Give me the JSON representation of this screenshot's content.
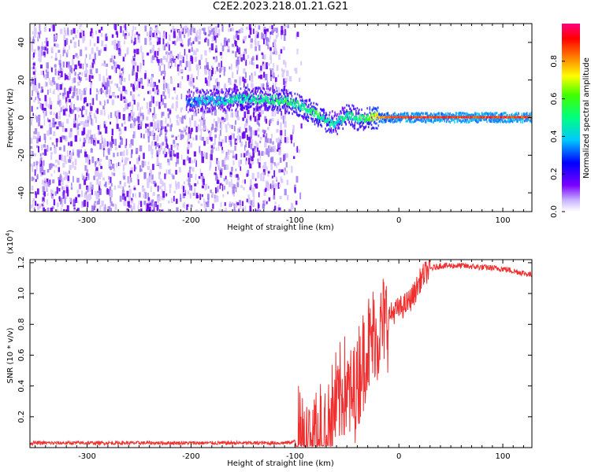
{
  "title": "C2E2.2023.218.01.21.G21",
  "colors": {
    "noise": "#a98ff0",
    "signal_low": "#6a00ff",
    "signal_mid": "#00e5ff",
    "signal_high": "#ff2a2a",
    "snr_line": "#f03030"
  },
  "chart_data": [
    {
      "type": "heatmap",
      "xlabel": "Height of straight line (km)",
      "ylabel": "Frequency (Hz)",
      "xlim": [
        -355,
        128
      ],
      "ylim": [
        -50,
        50
      ],
      "x_ticks": [
        "-300",
        "-200",
        "-100",
        "0",
        "100"
      ],
      "x_tick_values": [
        -300,
        -200,
        -100,
        0,
        100
      ],
      "y_ticks": [
        "-40",
        "-20",
        "0",
        "20",
        "40"
      ],
      "y_tick_values": [
        -40,
        -20,
        0,
        20,
        40
      ],
      "colorbar": {
        "label": "Normalized spectral amplitude",
        "range": [
          0,
          1
        ],
        "ticks": [
          "0.0",
          "0.2",
          "0.4",
          "0.6",
          "0.8"
        ],
        "tick_values": [
          0.0,
          0.2,
          0.4,
          0.6,
          0.8
        ]
      },
      "noise_region": {
        "x_range": [
          -355,
          -100
        ],
        "y_range": [
          -50,
          50
        ]
      },
      "signal_track": {
        "x": [
          -205,
          -190,
          -170,
          -150,
          -130,
          -110,
          -95,
          -80,
          -70,
          -60,
          -50,
          -40,
          -30,
          -20,
          0,
          50,
          100,
          128
        ],
        "frequency": [
          8,
          9,
          9,
          10,
          10,
          9,
          6,
          2,
          -2,
          -3,
          2,
          -1,
          0,
          0,
          0,
          0,
          0,
          0
        ],
        "amplitude": [
          0.3,
          0.4,
          0.45,
          0.5,
          0.5,
          0.55,
          0.5,
          0.55,
          0.5,
          0.45,
          0.5,
          0.5,
          0.6,
          0.8,
          0.9,
          0.9,
          0.9,
          0.9
        ]
      }
    },
    {
      "type": "line",
      "xlabel": "Height of straight line (km)",
      "ylabel": "SNR (10 * v/v)",
      "multiplier": "(x10",
      "multiplier_exp": "4",
      "multiplier_close": ")",
      "xlim": [
        -355,
        128
      ],
      "ylim": [
        0,
        1.22
      ],
      "x_ticks": [
        "-300",
        "-200",
        "-100",
        "0",
        "100"
      ],
      "x_tick_values": [
        -300,
        -200,
        -100,
        0,
        100
      ],
      "y_ticks": [
        "0.2",
        "0.4",
        "0.6",
        "0.8",
        "1.0",
        "1.2"
      ],
      "y_tick_values": [
        0.2,
        0.4,
        0.6,
        0.8,
        1.0,
        1.2
      ],
      "series": [
        {
          "x": [
            -355,
            -300,
            -250,
            -200,
            -150,
            -110,
            -100,
            -90,
            -80,
            -70,
            -60,
            -55,
            -50,
            -45,
            -40,
            -35,
            -30,
            -25,
            -20,
            -15,
            -10,
            -5,
            0,
            5,
            10,
            15,
            20,
            25,
            30,
            40,
            50,
            60,
            80,
            100,
            115,
            128
          ],
          "values": [
            0.03,
            0.03,
            0.03,
            0.03,
            0.03,
            0.03,
            0.04,
            0.06,
            0.1,
            0.15,
            0.28,
            0.35,
            0.4,
            0.3,
            0.45,
            0.55,
            0.65,
            0.7,
            0.75,
            0.8,
            0.85,
            0.88,
            0.9,
            0.92,
            0.95,
            1.0,
            1.08,
            1.13,
            1.16,
            1.18,
            1.18,
            1.18,
            1.17,
            1.16,
            1.14,
            1.12
          ]
        }
      ]
    }
  ]
}
